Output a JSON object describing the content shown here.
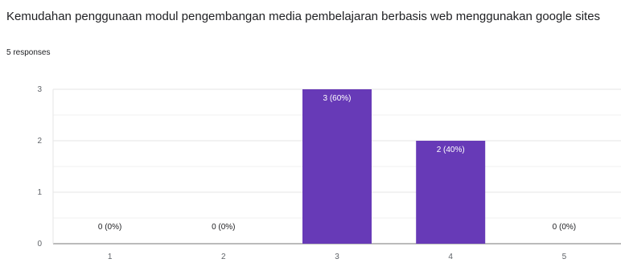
{
  "question": {
    "title": "Kemudahan penggunaan  modul pengembangan media pembelajaran berbasis web menggunakan google sites",
    "responses": "5 responses"
  },
  "colors": {
    "bar": "#673ab7",
    "grid": "#e6e6e6",
    "axis": "#777777"
  },
  "chart_data": {
    "type": "bar",
    "title": "",
    "xlabel": "",
    "ylabel": "",
    "categories": [
      "1",
      "2",
      "3",
      "4",
      "5"
    ],
    "values": [
      0,
      0,
      3,
      2,
      0
    ],
    "data_labels": [
      "0 (0%)",
      "0 (0%)",
      "3 (60%)",
      "2 (40%)",
      "0 (0%)"
    ],
    "y_ticks": [
      "0",
      "1",
      "2",
      "3"
    ],
    "ylim": [
      0,
      3
    ],
    "grid": true
  }
}
